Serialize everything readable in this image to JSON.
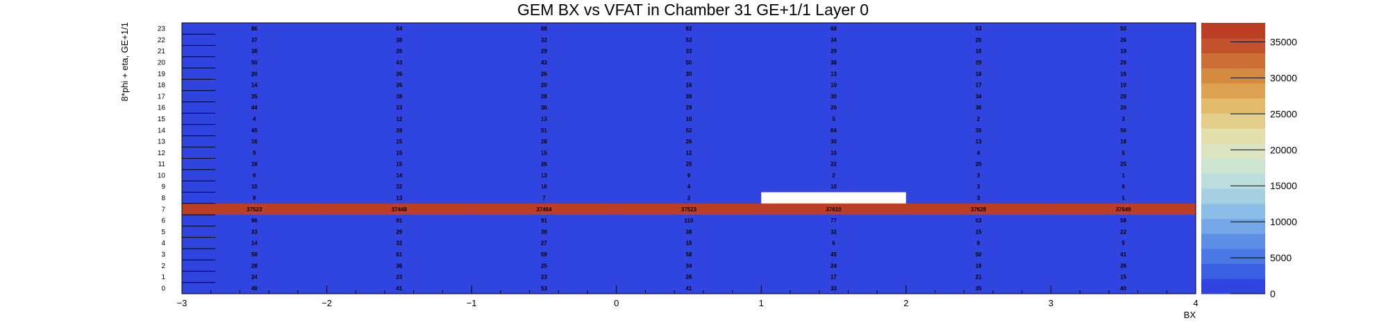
{
  "chart_data": {
    "type": "heatmap",
    "title": "GEM BX vs VFAT in Chamber 31 GE+1/1 Layer 0",
    "xlabel": "BX",
    "ylabel": "8*phi + eta, GE+1/1",
    "xlim": [
      -3,
      4
    ],
    "ylim": [
      0,
      24
    ],
    "x_ticks": [
      "−3",
      "−2",
      "−1",
      "0",
      "1",
      "2",
      "3",
      "4"
    ],
    "x_tick_values": [
      -3,
      -2,
      -1,
      0,
      1,
      2,
      3,
      4
    ],
    "y_ticks": [
      "0",
      "1",
      "2",
      "3",
      "4",
      "5",
      "6",
      "7",
      "8",
      "9",
      "10",
      "11",
      "12",
      "13",
      "14",
      "15",
      "16",
      "17",
      "18",
      "19",
      "20",
      "21",
      "22",
      "23"
    ],
    "x_bins": [
      -2.5,
      -1.5,
      -0.5,
      0.5,
      1.5,
      2.5,
      3.5
    ],
    "y_bins": [
      0,
      1,
      2,
      3,
      4,
      5,
      6,
      7,
      8,
      9,
      10,
      11,
      12,
      13,
      14,
      15,
      16,
      17,
      18,
      19,
      20,
      21,
      22,
      23
    ],
    "values": [
      [
        49,
        41,
        53,
        41,
        33,
        35,
        40
      ],
      [
        24,
        23,
        23,
        26,
        17,
        21,
        15
      ],
      [
        28,
        36,
        25,
        34,
        24,
        18,
        26
      ],
      [
        59,
        61,
        59,
        58,
        45,
        50,
        41
      ],
      [
        14,
        32,
        27,
        15,
        6,
        6,
        5
      ],
      [
        33,
        29,
        39,
        38,
        32,
        15,
        22
      ],
      [
        96,
        91,
        91,
        110,
        77,
        53,
        58
      ],
      [
        37523,
        37448,
        37464,
        37523,
        37610,
        37628,
        37649
      ],
      [
        8,
        13,
        7,
        3,
        null,
        3,
        1
      ],
      [
        10,
        22,
        16,
        4,
        10,
        3,
        6
      ],
      [
        9,
        14,
        13,
        9,
        2,
        3,
        1
      ],
      [
        18,
        15,
        26,
        25,
        22,
        20,
        25
      ],
      [
        9,
        15,
        15,
        12,
        10,
        4,
        5
      ],
      [
        16,
        15,
        28,
        26,
        30,
        13,
        18
      ],
      [
        45,
        28,
        51,
        52,
        64,
        39,
        50
      ],
      [
        4,
        12,
        13,
        10,
        5,
        2,
        3
      ],
      [
        44,
        23,
        36,
        29,
        26,
        36,
        26
      ],
      [
        35,
        28,
        28,
        39,
        30,
        34,
        28
      ],
      [
        14,
        26,
        20,
        16,
        10,
        17,
        10
      ],
      [
        20,
        26,
        26,
        30,
        13,
        18,
        16
      ],
      [
        50,
        43,
        43,
        50,
        38,
        29,
        26
      ],
      [
        38,
        26,
        29,
        33,
        29,
        18,
        19
      ],
      [
        37,
        38,
        32,
        53,
        34,
        20,
        26
      ],
      [
        86,
        84,
        68,
        82,
        68,
        63,
        50
      ]
    ],
    "empty_cell_color": "#ffffff",
    "colorbar": {
      "min": 0,
      "max": 37649,
      "ticks": [
        "0",
        "5000",
        "10000",
        "15000",
        "20000",
        "25000",
        "30000",
        "35000"
      ],
      "tick_values": [
        0,
        5000,
        10000,
        15000,
        20000,
        25000,
        30000,
        35000
      ],
      "colors": [
        "#3045e0",
        "#3b5fe2",
        "#4a78e4",
        "#5e8fe6",
        "#74a6e8",
        "#8cbde6",
        "#a5d0e2",
        "#bddedc",
        "#cde6d2",
        "#dbe5c2",
        "#e3deaa",
        "#e4cf8a",
        "#e2bc6c",
        "#dda353",
        "#d58a42",
        "#cc6f36",
        "#c3522c",
        "#bb3f24"
      ]
    },
    "grid": false,
    "legend": "colorbar-right"
  }
}
